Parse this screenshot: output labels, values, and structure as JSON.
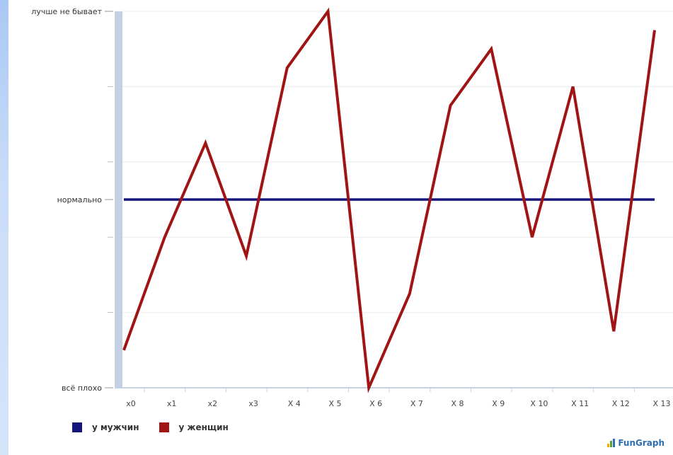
{
  "chart_data": {
    "type": "line",
    "categories": [
      "x0",
      "x1",
      "x2",
      "x3",
      "X 4",
      "X 5",
      "X 6",
      "X 7",
      "X 8",
      "X 9",
      "X 10",
      "X 11",
      "X 12",
      "X 13"
    ],
    "y_tick_labels": [
      {
        "value": 0,
        "label": "всё плохо"
      },
      {
        "value": 50,
        "label": "нормально"
      },
      {
        "value": 100,
        "label": "лучше не бывает"
      }
    ],
    "ylim": [
      0,
      100
    ],
    "grid": true,
    "legend_position": "bottom-left",
    "series": [
      {
        "name": "у мужчин",
        "color": "#14147a",
        "values": [
          50,
          50,
          50,
          50,
          50,
          50,
          50,
          50,
          50,
          50,
          50,
          50,
          50,
          50
        ]
      },
      {
        "name": "у женщин",
        "color": "#a01414",
        "values": [
          10,
          40,
          65,
          35,
          85,
          100,
          0,
          25,
          75,
          90,
          40,
          80,
          15,
          95
        ]
      }
    ]
  },
  "brand": {
    "text": "FunGraph"
  }
}
